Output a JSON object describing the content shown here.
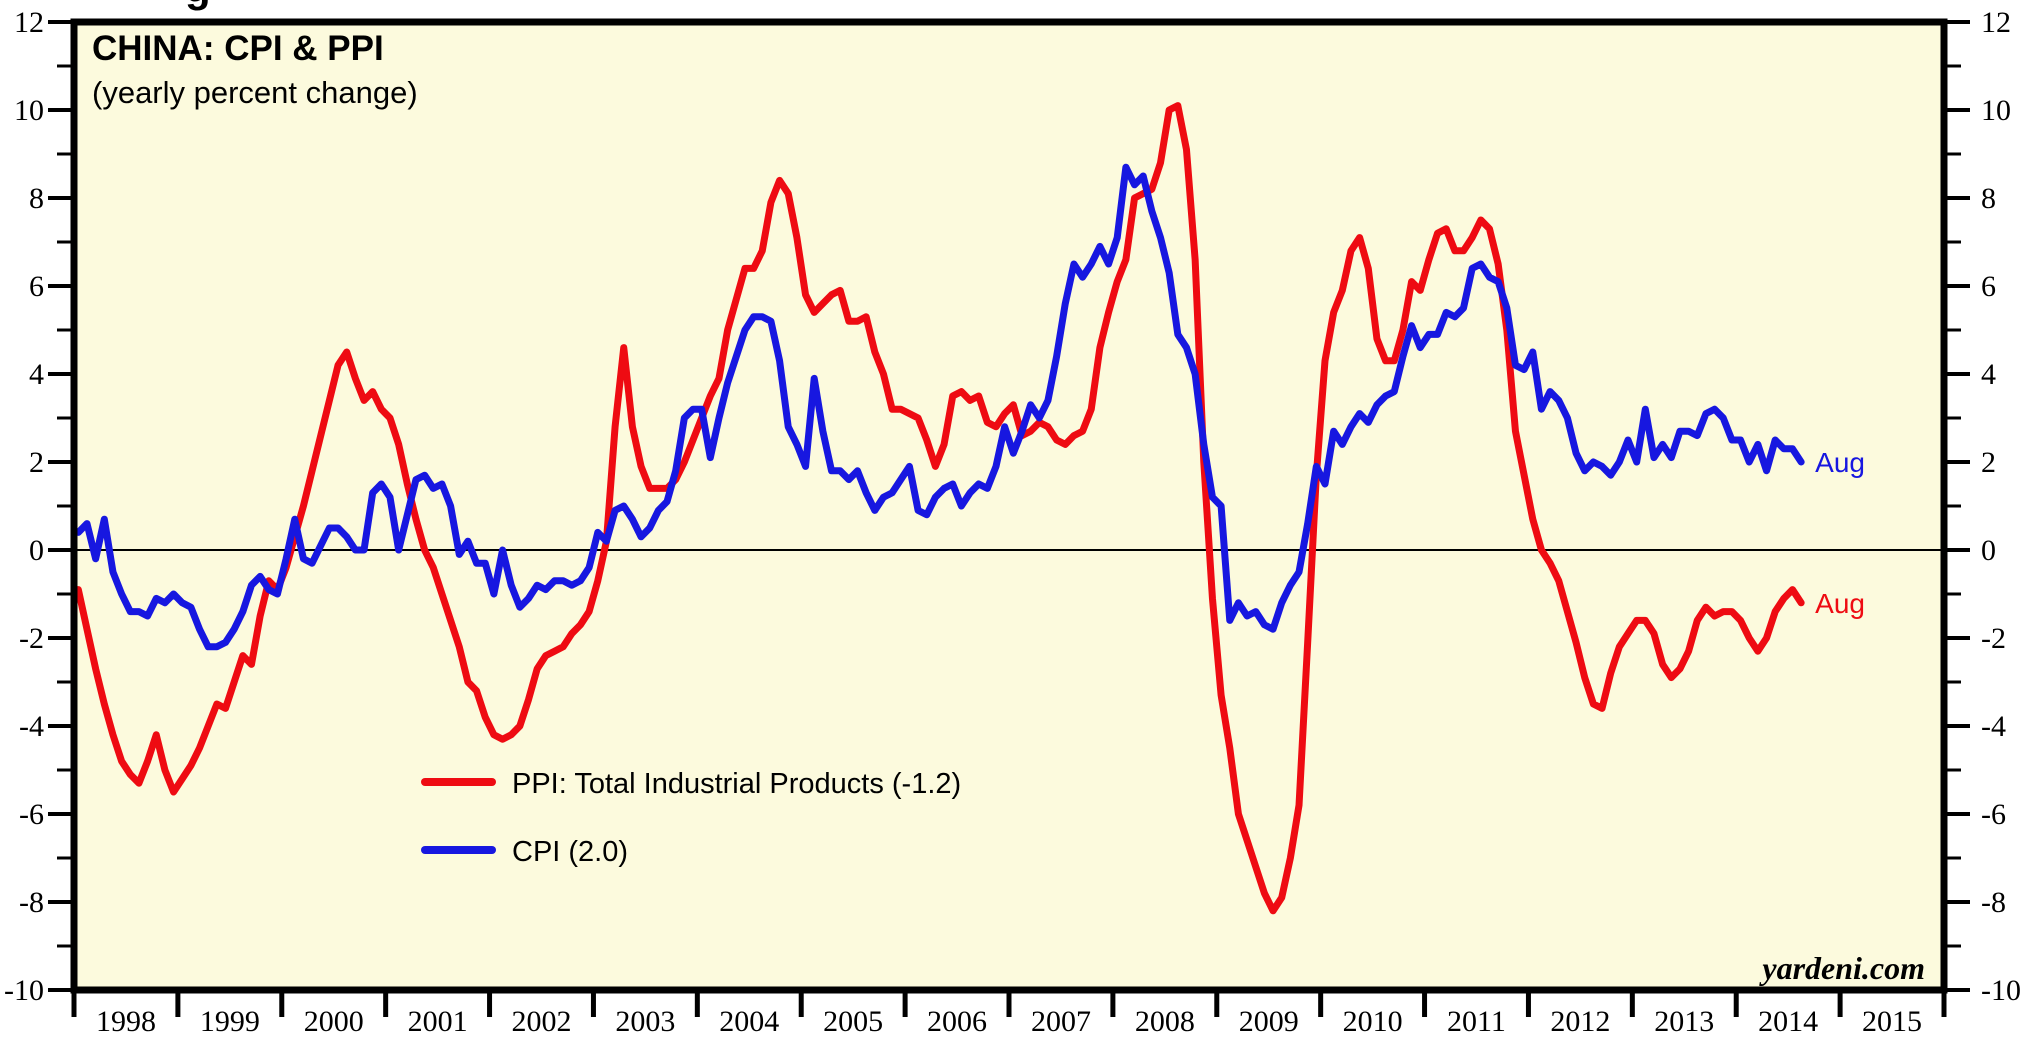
{
  "page": {
    "clipped_top_text": "g"
  },
  "chart": {
    "title": "CHINA: CPI & PPI",
    "subtitle": "(yearly percent change)",
    "watermark": "yardeni.com",
    "plot_background": "#fcfadd",
    "border_color": "#000000",
    "zero_line_color": "#000000"
  },
  "legend": {
    "items": [
      {
        "label": "PPI: Total Industrial Products (-1.2)",
        "color": "#ee0b12"
      },
      {
        "label": "CPI (2.0)",
        "color": "#1717e0"
      }
    ]
  },
  "chart_data": {
    "type": "line",
    "title": "CHINA: CPI & PPI",
    "subtitle": "(yearly percent change)",
    "frequency": "monthly",
    "start": {
      "year": 1998,
      "month": 1
    },
    "x_domain_years": [
      1998,
      2016
    ],
    "x_axis_year_labels": [
      1998,
      1999,
      2000,
      2001,
      2002,
      2003,
      2004,
      2005,
      2006,
      2007,
      2008,
      2009,
      2010,
      2011,
      2012,
      2013,
      2014,
      2015
    ],
    "ylim": [
      -10,
      12
    ],
    "y_label_step": 2,
    "y_minor_step": 1,
    "zero_line": true,
    "grid": false,
    "legend_position": "inside-lower-left",
    "series": [
      {
        "name": "PPI: Total Industrial Products",
        "legend_label": "PPI: Total Industrial Products (-1.2)",
        "color": "#ee0b12",
        "end_label": "Aug",
        "values": [
          -0.9,
          -1.8,
          -2.7,
          -3.5,
          -4.2,
          -4.8,
          -5.1,
          -5.3,
          -4.8,
          -4.2,
          -5.0,
          -5.5,
          -5.2,
          -4.9,
          -4.5,
          -4.0,
          -3.5,
          -3.6,
          -3.0,
          -2.4,
          -2.6,
          -1.5,
          -0.7,
          -0.9,
          -0.4,
          0.3,
          1.0,
          1.8,
          2.6,
          3.4,
          4.2,
          4.5,
          3.9,
          3.4,
          3.6,
          3.2,
          3.0,
          2.4,
          1.5,
          0.7,
          0.0,
          -0.4,
          -1.0,
          -1.6,
          -2.2,
          -3.0,
          -3.2,
          -3.8,
          -4.2,
          -4.3,
          -4.2,
          -4.0,
          -3.4,
          -2.7,
          -2.4,
          -2.3,
          -2.2,
          -1.9,
          -1.7,
          -1.4,
          -0.7,
          0.2,
          2.8,
          4.6,
          2.8,
          1.9,
          1.4,
          1.4,
          1.4,
          1.6,
          2.0,
          2.5,
          3.0,
          3.5,
          3.9,
          5.0,
          5.7,
          6.4,
          6.4,
          6.8,
          7.9,
          8.4,
          8.1,
          7.1,
          5.8,
          5.4,
          5.6,
          5.8,
          5.9,
          5.2,
          5.2,
          5.3,
          4.5,
          4.0,
          3.2,
          3.2,
          3.1,
          3.0,
          2.5,
          1.9,
          2.4,
          3.5,
          3.6,
          3.4,
          3.5,
          2.9,
          2.8,
          3.1,
          3.3,
          2.6,
          2.7,
          2.9,
          2.8,
          2.5,
          2.4,
          2.6,
          2.7,
          3.2,
          4.6,
          5.4,
          6.1,
          6.6,
          8.0,
          8.1,
          8.2,
          8.8,
          10.0,
          10.1,
          9.1,
          6.6,
          2.0,
          -1.1,
          -3.3,
          -4.5,
          -6.0,
          -6.6,
          -7.2,
          -7.8,
          -8.2,
          -7.9,
          -7.0,
          -5.8,
          -2.1,
          1.7,
          4.3,
          5.4,
          5.9,
          6.8,
          7.1,
          6.4,
          4.8,
          4.3,
          4.3,
          5.0,
          6.1,
          5.9,
          6.6,
          7.2,
          7.3,
          6.8,
          6.8,
          7.1,
          7.5,
          7.3,
          6.5,
          5.0,
          2.7,
          1.7,
          0.7,
          0.0,
          -0.3,
          -0.7,
          -1.4,
          -2.1,
          -2.9,
          -3.5,
          -3.6,
          -2.8,
          -2.2,
          -1.9,
          -1.6,
          -1.6,
          -1.9,
          -2.6,
          -2.9,
          -2.7,
          -2.3,
          -1.6,
          -1.3,
          -1.5,
          -1.4,
          -1.4,
          -1.6,
          -2.0,
          -2.3,
          -2.0,
          -1.4,
          -1.1,
          -0.9,
          -1.2
        ]
      },
      {
        "name": "CPI",
        "legend_label": "CPI (2.0)",
        "color": "#1717e0",
        "end_label": "Aug",
        "values": [
          0.4,
          0.6,
          -0.2,
          0.7,
          -0.5,
          -1.0,
          -1.4,
          -1.4,
          -1.5,
          -1.1,
          -1.2,
          -1.0,
          -1.2,
          -1.3,
          -1.8,
          -2.2,
          -2.2,
          -2.1,
          -1.8,
          -1.4,
          -0.8,
          -0.6,
          -0.9,
          -1.0,
          -0.2,
          0.7,
          -0.2,
          -0.3,
          0.1,
          0.5,
          0.5,
          0.3,
          0.0,
          0.0,
          1.3,
          1.5,
          1.2,
          0.0,
          0.8,
          1.6,
          1.7,
          1.4,
          1.5,
          1.0,
          -0.1,
          0.2,
          -0.3,
          -0.3,
          -1.0,
          0.0,
          -0.8,
          -1.3,
          -1.1,
          -0.8,
          -0.9,
          -0.7,
          -0.7,
          -0.8,
          -0.7,
          -0.4,
          0.4,
          0.2,
          0.9,
          1.0,
          0.7,
          0.3,
          0.5,
          0.9,
          1.1,
          1.8,
          3.0,
          3.2,
          3.2,
          2.1,
          3.0,
          3.8,
          4.4,
          5.0,
          5.3,
          5.3,
          5.2,
          4.3,
          2.8,
          2.4,
          1.9,
          3.9,
          2.7,
          1.8,
          1.8,
          1.6,
          1.8,
          1.3,
          0.9,
          1.2,
          1.3,
          1.6,
          1.9,
          0.9,
          0.8,
          1.2,
          1.4,
          1.5,
          1.0,
          1.3,
          1.5,
          1.4,
          1.9,
          2.8,
          2.2,
          2.7,
          3.3,
          3.0,
          3.4,
          4.4,
          5.6,
          6.5,
          6.2,
          6.5,
          6.9,
          6.5,
          7.1,
          8.7,
          8.3,
          8.5,
          7.7,
          7.1,
          6.3,
          4.9,
          4.6,
          4.0,
          2.4,
          1.2,
          1.0,
          -1.6,
          -1.2,
          -1.5,
          -1.4,
          -1.7,
          -1.8,
          -1.2,
          -0.8,
          -0.5,
          0.6,
          1.9,
          1.5,
          2.7,
          2.4,
          2.8,
          3.1,
          2.9,
          3.3,
          3.5,
          3.6,
          4.4,
          5.1,
          4.6,
          4.9,
          4.9,
          5.4,
          5.3,
          5.5,
          6.4,
          6.5,
          6.2,
          6.1,
          5.5,
          4.2,
          4.1,
          4.5,
          3.2,
          3.6,
          3.4,
          3.0,
          2.2,
          1.8,
          2.0,
          1.9,
          1.7,
          2.0,
          2.5,
          2.0,
          3.2,
          2.1,
          2.4,
          2.1,
          2.7,
          2.7,
          2.6,
          3.1,
          3.2,
          3.0,
          2.5,
          2.5,
          2.0,
          2.4,
          1.8,
          2.5,
          2.3,
          2.3,
          2.0
        ]
      }
    ]
  }
}
